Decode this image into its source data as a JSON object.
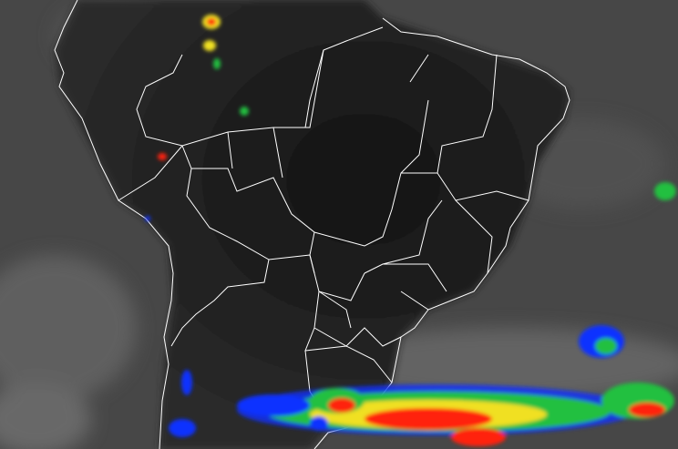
{
  "image": {
    "type": "infrared satellite image",
    "region": "South America",
    "colors": {
      "background_ocean": "#4a4a4a",
      "land_dark": "#1c1c1c",
      "cloud_gray": "#8a8a8a",
      "borders": "#ffffff",
      "cold_tops_blue": "#1030ff",
      "cold_tops_green": "#20c040",
      "cold_tops_yellow": "#f0e020",
      "cold_tops_red": "#ff2010"
    }
  }
}
